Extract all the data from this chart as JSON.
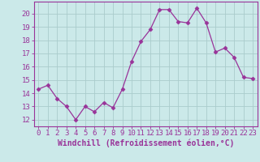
{
  "x": [
    0,
    1,
    2,
    3,
    4,
    5,
    6,
    7,
    8,
    9,
    10,
    11,
    12,
    13,
    14,
    15,
    16,
    17,
    18,
    19,
    20,
    21,
    22,
    23
  ],
  "y": [
    14.3,
    14.6,
    13.6,
    13.0,
    12.0,
    13.0,
    12.6,
    13.3,
    12.9,
    14.3,
    16.4,
    17.9,
    18.8,
    20.3,
    20.3,
    19.4,
    19.3,
    20.4,
    19.3,
    17.1,
    17.4,
    16.7,
    15.2,
    15.1
  ],
  "line_color": "#993399",
  "marker": "D",
  "marker_size": 2.5,
  "bg_color": "#cbe9e9",
  "grid_color": "#aacccc",
  "xlabel": "Windchill (Refroidissement éolien,°C)",
  "ylabel_ticks": [
    12,
    13,
    14,
    15,
    16,
    17,
    18,
    19,
    20
  ],
  "ylim": [
    11.5,
    20.9
  ],
  "xlim": [
    -0.5,
    23.5
  ],
  "tick_color": "#993399",
  "label_color": "#993399",
  "font_size": 6.5,
  "xlabel_fontsize": 7.0,
  "spine_color": "#993399"
}
